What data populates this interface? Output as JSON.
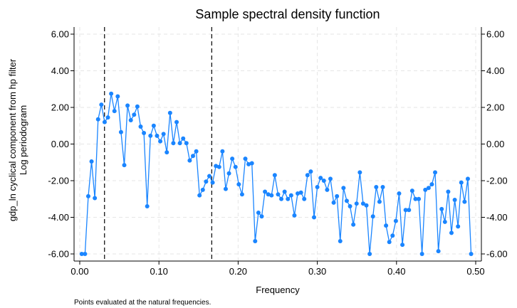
{
  "chart_data": {
    "type": "line",
    "title": "Sample spectral density function",
    "xlabel": "Frequency",
    "ylabel_lines": [
      "gdp_ln cyclical component from hp filter",
      "Log periodogram"
    ],
    "note": "Points evaluated at the natural frequencies.",
    "xlim": [
      0,
      0.5
    ],
    "ylim": [
      -6,
      6
    ],
    "x_ticks": [
      0.0,
      0.1,
      0.2,
      0.3,
      0.4,
      0.5
    ],
    "x_tick_labels": [
      "0.00",
      "0.10",
      "0.20",
      "0.30",
      "0.40",
      "0.50"
    ],
    "y_ticks": [
      -6,
      -4,
      -2,
      0,
      2,
      4,
      6
    ],
    "y_tick_labels": [
      "-6.00",
      "-4.00",
      "-2.00",
      "0.00",
      "2.00",
      "4.00",
      "6.00"
    ],
    "reference_lines_x": [
      0.03125,
      0.16667
    ],
    "grid": true,
    "mirror_right_axis": true,
    "series": [
      {
        "color": "#1a85ff",
        "marker": "circle",
        "x_start": 0.0025,
        "x_step": 0.004132,
        "values": [
          -6.0,
          -6.0,
          -2.85,
          -0.95,
          -2.95,
          1.35,
          2.15,
          1.2,
          1.45,
          2.75,
          1.8,
          2.6,
          0.65,
          -1.15,
          2.1,
          1.3,
          1.6,
          2.05,
          0.95,
          0.6,
          -3.4,
          0.45,
          1.0,
          0.45,
          0.15,
          0.55,
          -0.45,
          1.7,
          0.05,
          1.2,
          0.05,
          0.3,
          0.05,
          -0.9,
          -0.65,
          -0.4,
          -2.8,
          -2.5,
          -2.05,
          -1.75,
          -2.1,
          -1.2,
          -1.25,
          -0.4,
          -2.45,
          -1.6,
          -0.8,
          -1.25,
          -2.2,
          -2.75,
          -0.8,
          -1.1,
          -1.05,
          -5.3,
          -3.75,
          -3.95,
          -2.6,
          -2.75,
          -2.8,
          -1.7,
          -2.75,
          -3.0,
          -2.6,
          -3.0,
          -2.8,
          -3.9,
          -2.7,
          -2.65,
          -3.0,
          -1.7,
          -1.5,
          -4.0,
          -2.35,
          -1.85,
          -2.0,
          -2.5,
          -1.9,
          -3.2,
          -2.85,
          -5.3,
          -2.4,
          -3.1,
          -3.4,
          -4.4,
          -3.25,
          -1.55,
          -3.25,
          -3.35,
          -6.0,
          -3.95,
          -2.35,
          -3.15,
          -2.35,
          -4.45,
          -5.35,
          -5.0,
          -4.2,
          -2.7,
          -5.5,
          -3.6,
          -3.6,
          -2.55,
          -3.0,
          -3.0,
          -6.0,
          -2.5,
          -2.4,
          -2.2,
          -1.55,
          -5.85,
          -3.55,
          -4.25,
          -2.6,
          -4.85,
          -3.05,
          -4.5,
          -2.1,
          -3.15,
          -1.9,
          -6.0
        ]
      }
    ]
  }
}
